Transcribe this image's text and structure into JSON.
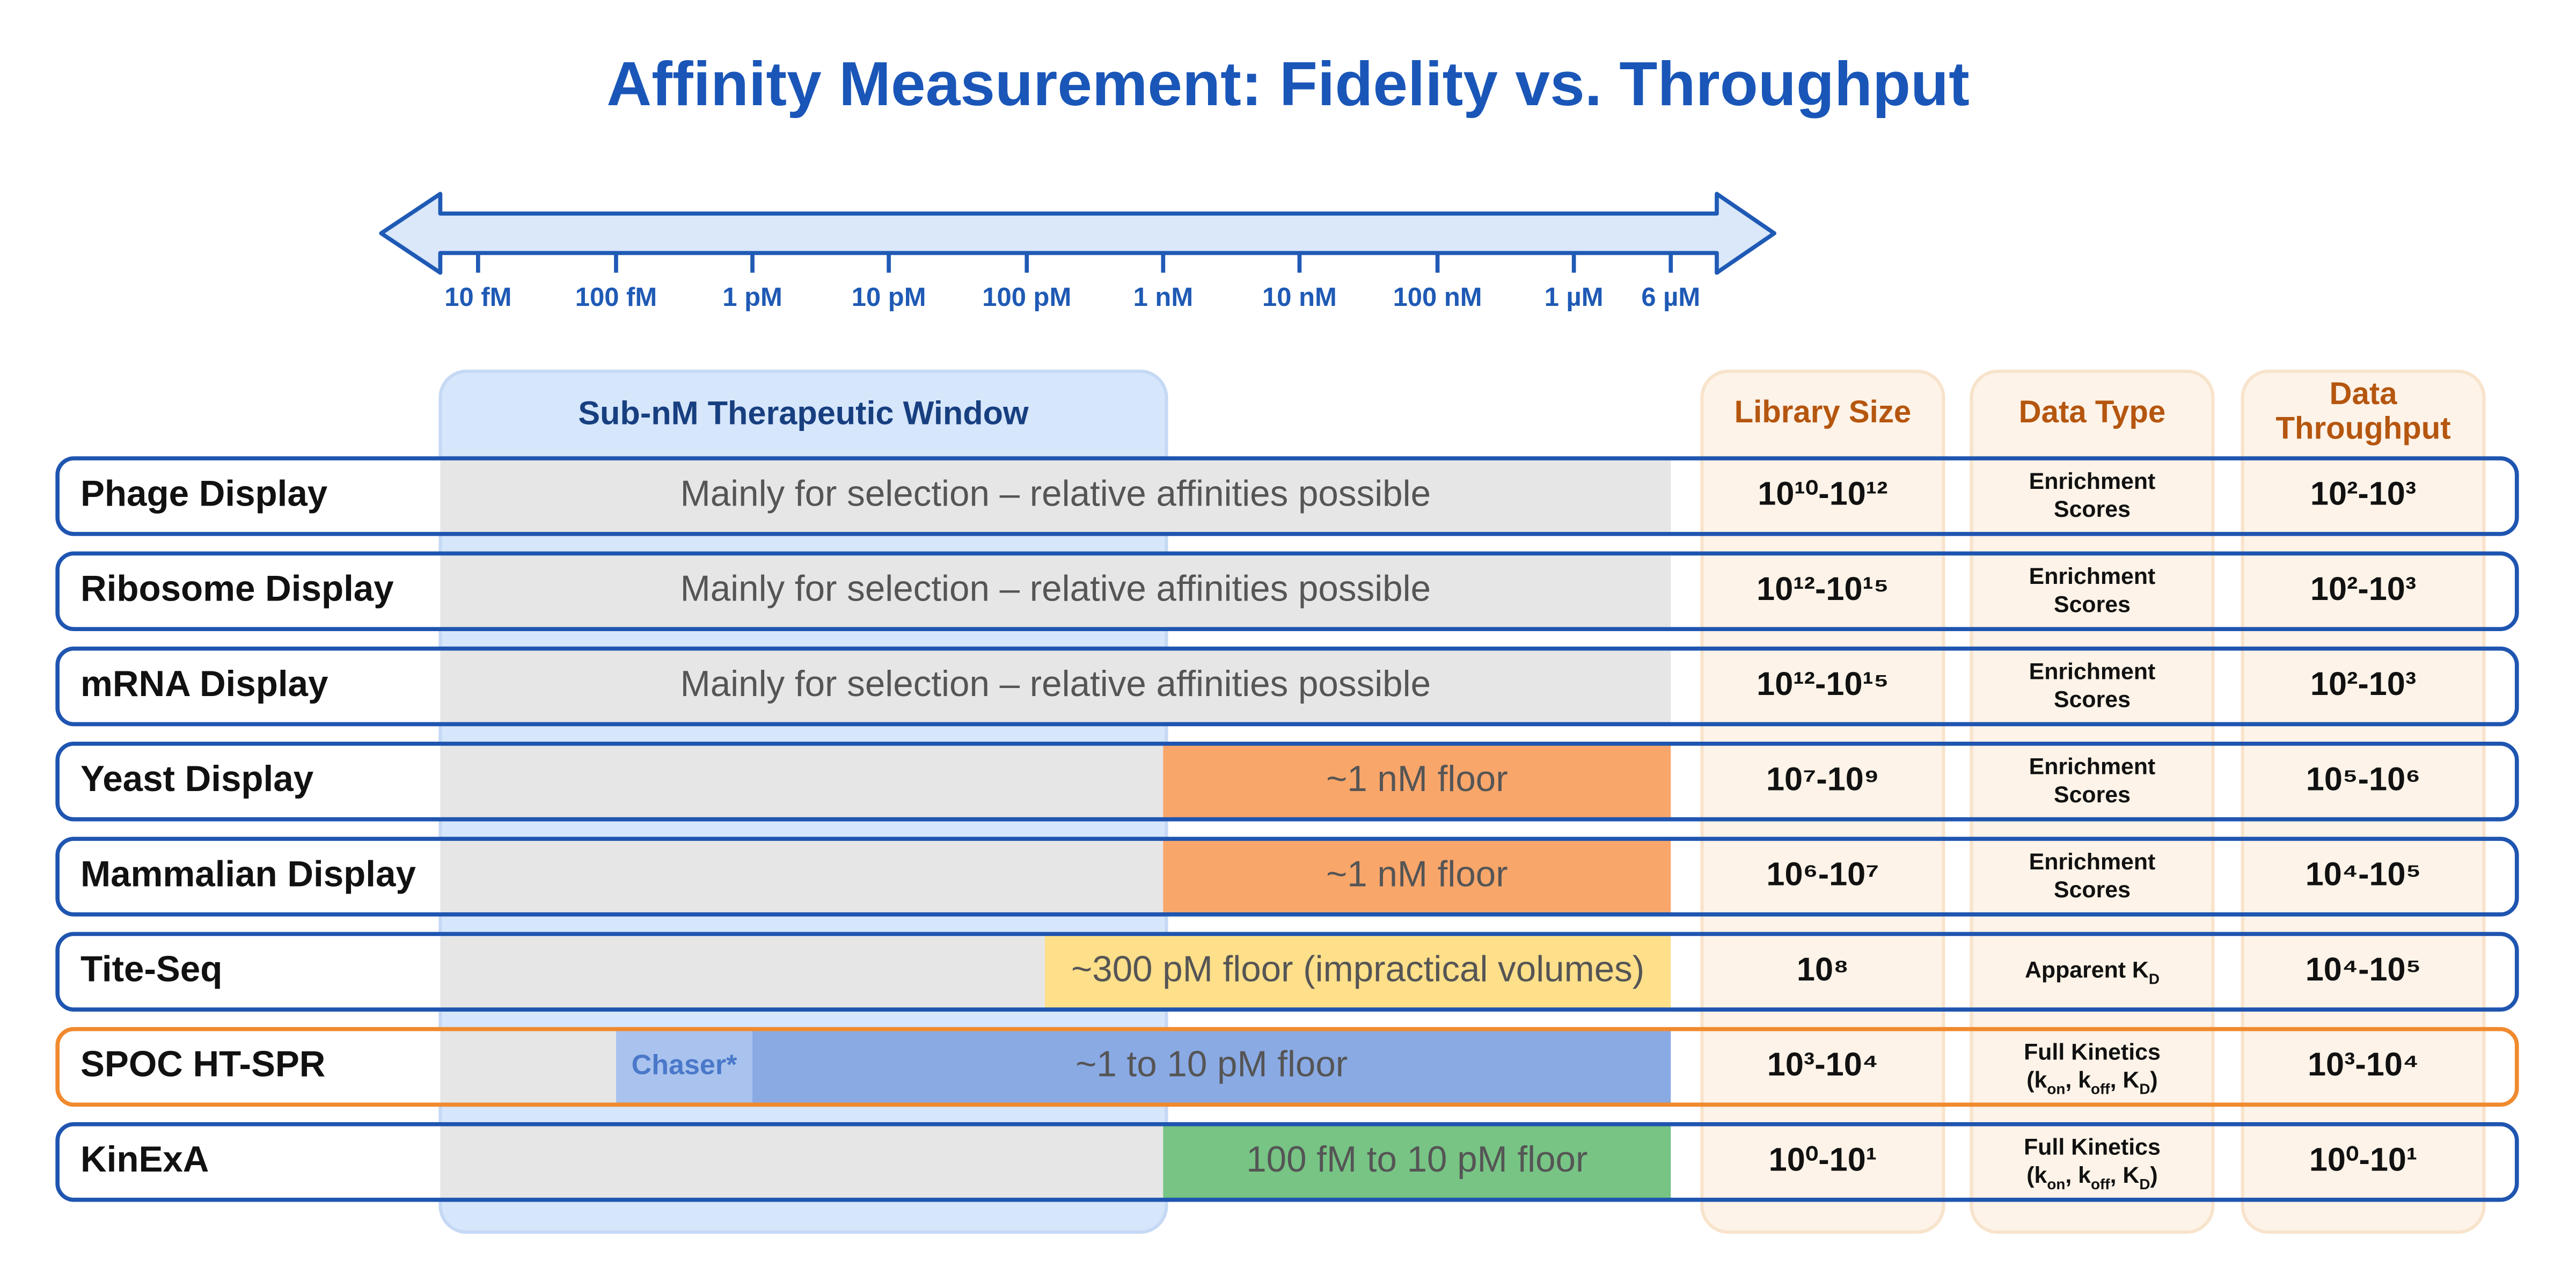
{
  "title": "Affinity Measurement: Fidelity vs. Throughput",
  "axis": {
    "ticks": [
      "10 fM",
      "100 fM",
      "1 pM",
      "10 pM",
      "100 pM",
      "1 nM",
      "10 nM",
      "100 nM",
      "1 µM",
      "6 µM"
    ]
  },
  "window_label": "Sub-nM Therapeutic Window",
  "columns": [
    [
      "Library Size"
    ],
    [
      "Data Type"
    ],
    [
      "Data",
      "Throughput"
    ]
  ],
  "rows": [
    {
      "name": "Phage Display",
      "segments": [
        {
          "label": "Mainly for selection – relative affinities possible",
          "color": "#e6e6e6"
        }
      ],
      "library": "10¹⁰-10¹²",
      "data_type": [
        [
          {
            "t": "Enrichment"
          }
        ],
        [
          {
            "t": "Scores"
          }
        ]
      ],
      "throughput": "10²-10³"
    },
    {
      "name": "Ribosome Display",
      "segments": [
        {
          "label": "Mainly for selection – relative affinities possible",
          "color": "#e6e6e6"
        }
      ],
      "library": "10¹²-10¹⁵",
      "data_type": [
        [
          {
            "t": "Enrichment"
          }
        ],
        [
          {
            "t": "Scores"
          }
        ]
      ],
      "throughput": "10²-10³"
    },
    {
      "name": "mRNA Display",
      "segments": [
        {
          "label": "Mainly for selection – relative affinities possible",
          "color": "#e6e6e6"
        }
      ],
      "library": "10¹²-10¹⁵",
      "data_type": [
        [
          {
            "t": "Enrichment"
          }
        ],
        [
          {
            "t": "Scores"
          }
        ]
      ],
      "throughput": "10²-10³"
    },
    {
      "name": "Yeast Display",
      "segments": [
        {
          "color": "#e6e6e6"
        },
        {
          "label": "~1 nM floor",
          "color": "#f9a66b"
        }
      ],
      "library": "10⁷-10⁹",
      "data_type": [
        [
          {
            "t": "Enrichment"
          }
        ],
        [
          {
            "t": "Scores"
          }
        ]
      ],
      "throughput": "10⁵-10⁶"
    },
    {
      "name": "Mammalian Display",
      "segments": [
        {
          "color": "#e6e6e6"
        },
        {
          "label": "~1 nM floor",
          "color": "#f9a66b"
        }
      ],
      "library": "10⁶-10⁷",
      "data_type": [
        [
          {
            "t": "Enrichment"
          }
        ],
        [
          {
            "t": "Scores"
          }
        ]
      ],
      "throughput": "10⁴-10⁵"
    },
    {
      "name": "Tite-Seq",
      "segments": [
        {
          "color": "#e6e6e6"
        },
        {
          "label": "~300 pM floor (impractical volumes)",
          "color": "#fedf8a"
        }
      ],
      "library": "10⁸",
      "data_type": [
        [
          {
            "t": "Apparent K"
          },
          {
            "t": "D",
            "sub": true
          }
        ]
      ],
      "throughput": "10⁴-10⁵"
    },
    {
      "name": "SPOC HT-SPR",
      "highlight": "#f08a2e",
      "segments": [
        {
          "color": "#e6e6e6"
        },
        {
          "label": "Chaser*",
          "color": "#a9c3ee"
        },
        {
          "label": "~1 to 10 pM floor",
          "color": "#8aaae4"
        }
      ],
      "library": "10³-10⁴",
      "data_type": [
        [
          {
            "t": "Full Kinetics"
          }
        ],
        [
          {
            "t": "(k"
          },
          {
            "t": "on",
            "sub": true
          },
          {
            "t": ", k"
          },
          {
            "t": "off",
            "sub": true
          },
          {
            "t": ", K"
          },
          {
            "t": "D",
            "sub": true
          },
          {
            "t": ")"
          }
        ]
      ],
      "throughput": "10³-10⁴"
    },
    {
      "name": "KinExA",
      "segments": [
        {
          "color": "#e6e6e6"
        },
        {
          "label": "100 fM to 10 pM floor",
          "color": "#77c484"
        }
      ],
      "library": "10⁰-10¹",
      "data_type": [
        [
          {
            "t": "Full Kinetics"
          }
        ],
        [
          {
            "t": "(k"
          },
          {
            "t": "on",
            "sub": true
          },
          {
            "t": ", k"
          },
          {
            "t": "off",
            "sub": true
          },
          {
            "t": ", K"
          },
          {
            "t": "D",
            "sub": true
          },
          {
            "t": ")"
          }
        ]
      ],
      "throughput": "10⁰-10¹"
    }
  ]
}
